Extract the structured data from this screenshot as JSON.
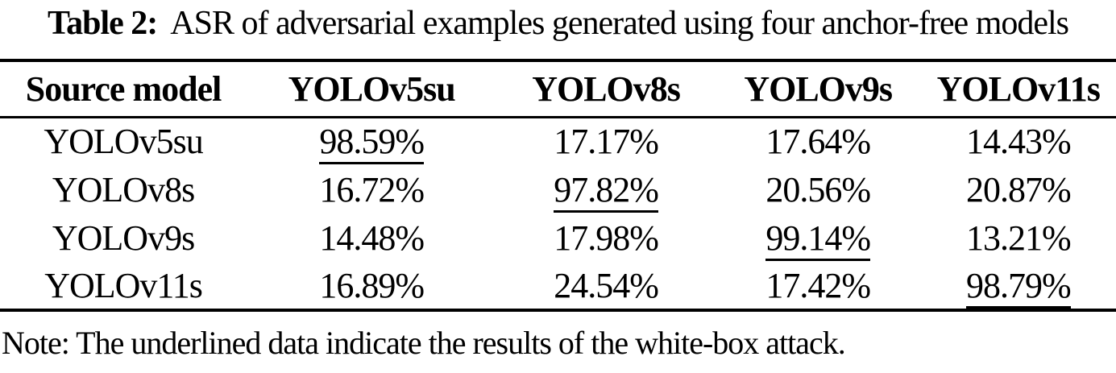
{
  "caption": {
    "label": "Table 2:",
    "text": "ASR of adversarial examples generated using four anchor-free models"
  },
  "table": {
    "columns": [
      "Source model",
      "YOLOv5su",
      "YOLOv8s",
      "YOLOv9s",
      "YOLOv11s"
    ],
    "rows": [
      {
        "model": "YOLOv5su",
        "values": [
          "98.59%",
          "17.17%",
          "17.64%",
          "14.43%"
        ],
        "underline_col": 0
      },
      {
        "model": "YOLOv8s",
        "values": [
          "16.72%",
          "97.82%",
          "20.56%",
          "20.87%"
        ],
        "underline_col": 1
      },
      {
        "model": "YOLOv9s",
        "values": [
          "14.48%",
          "17.98%",
          "99.14%",
          "13.21%"
        ],
        "underline_col": 2
      },
      {
        "model": "YOLOv11s",
        "values": [
          "16.89%",
          "24.54%",
          "17.42%",
          "98.79%"
        ],
        "underline_col": 3
      }
    ]
  },
  "note": "Note: The underlined data indicate the results of the white-box attack.",
  "colors": {
    "background": "#ffffff",
    "text": "#000000",
    "rule": "#000000"
  }
}
